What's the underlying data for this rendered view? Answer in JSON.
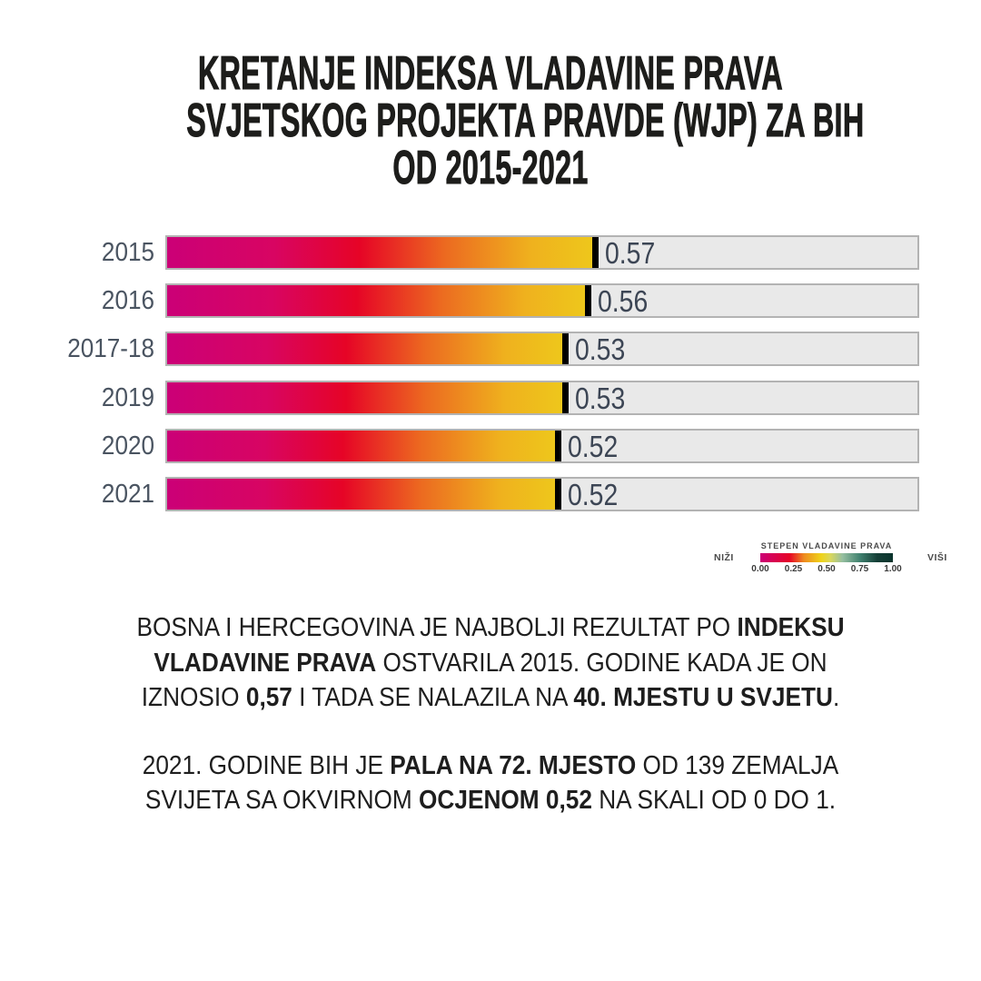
{
  "title": {
    "lines": [
      "KRETANJE INDEKSA VLADAVINE PRAVA",
      "SVJETSKOG PROJEKTA PRAVDE (WJP) ZA BIH",
      "OD 2015-2021"
    ]
  },
  "chart_data": {
    "type": "bar",
    "orientation": "horizontal",
    "categories": [
      "2015",
      "2016",
      "2017-18",
      "2019",
      "2020",
      "2021"
    ],
    "values": [
      0.57,
      0.56,
      0.53,
      0.53,
      0.52,
      0.52
    ],
    "value_labels": [
      "0.57",
      "0.56",
      "0.53",
      "0.53",
      "0.52",
      "0.52"
    ],
    "xlim": [
      0,
      1
    ],
    "grid": false,
    "bar_gradient_colors": [
      "#cb0077",
      "#d80562",
      "#e60426",
      "#ec6a20",
      "#efb11e",
      "#eec81b"
    ],
    "bar_gradient_stops": [
      0,
      25,
      45,
      65,
      85,
      100
    ],
    "track_color": "#e9e9e9",
    "track_border_color": "#b3b3b3",
    "marker_color": "#000000",
    "category_label_color": "#4a5461",
    "value_label_color": "#3c4554"
  },
  "legend": {
    "title": "STEPEN VLADAVINE PRAVA",
    "left_label": "NIŽI",
    "right_label": "VIŠI",
    "ticks": [
      "0.00",
      "0.25",
      "0.50",
      "0.75",
      "1.00"
    ],
    "gradient_colors": [
      "#cb0077",
      "#e60426",
      "#ee8b1e",
      "#efd319",
      "#d9d75c",
      "#96bfa0",
      "#418270",
      "#153f37",
      "#0a332c"
    ],
    "gradient_stops": [
      0,
      22,
      33,
      46,
      53,
      62,
      75,
      88,
      100
    ]
  },
  "paragraphs": [
    {
      "segments": [
        {
          "text": "BOSNA I HERCEGOVINA JE NAJBOLJI REZULTAT PO ",
          "bold": false
        },
        {
          "text": "INDEKSU VLADAVINE PRAVA",
          "bold": true
        },
        {
          "text": " OSTVARILA 2015. GODINE KADA JE ON IZNOSIO ",
          "bold": false
        },
        {
          "text": "0,57",
          "bold": true
        },
        {
          "text": " I TADA SE NALAZILA NA ",
          "bold": false
        },
        {
          "text": "40. MJESTU U SVJETU",
          "bold": true
        },
        {
          "text": ".",
          "bold": false
        }
      ]
    },
    {
      "segments": [
        {
          "text": "2021. GODINE BIH JE ",
          "bold": false
        },
        {
          "text": "PALA NA 72. MJESTO",
          "bold": true
        },
        {
          "text": " OD 139 ZEMALJA SVIJETA SA OKVIRNOM ",
          "bold": false
        },
        {
          "text": "OCJENOM 0,52",
          "bold": true
        },
        {
          "text": " NA SKALI OD 0 DO 1.",
          "bold": false
        }
      ]
    }
  ],
  "colors": {
    "background": "#ffffff",
    "title_text": "#1d1d1b",
    "body_text": "#1e1e1e"
  }
}
